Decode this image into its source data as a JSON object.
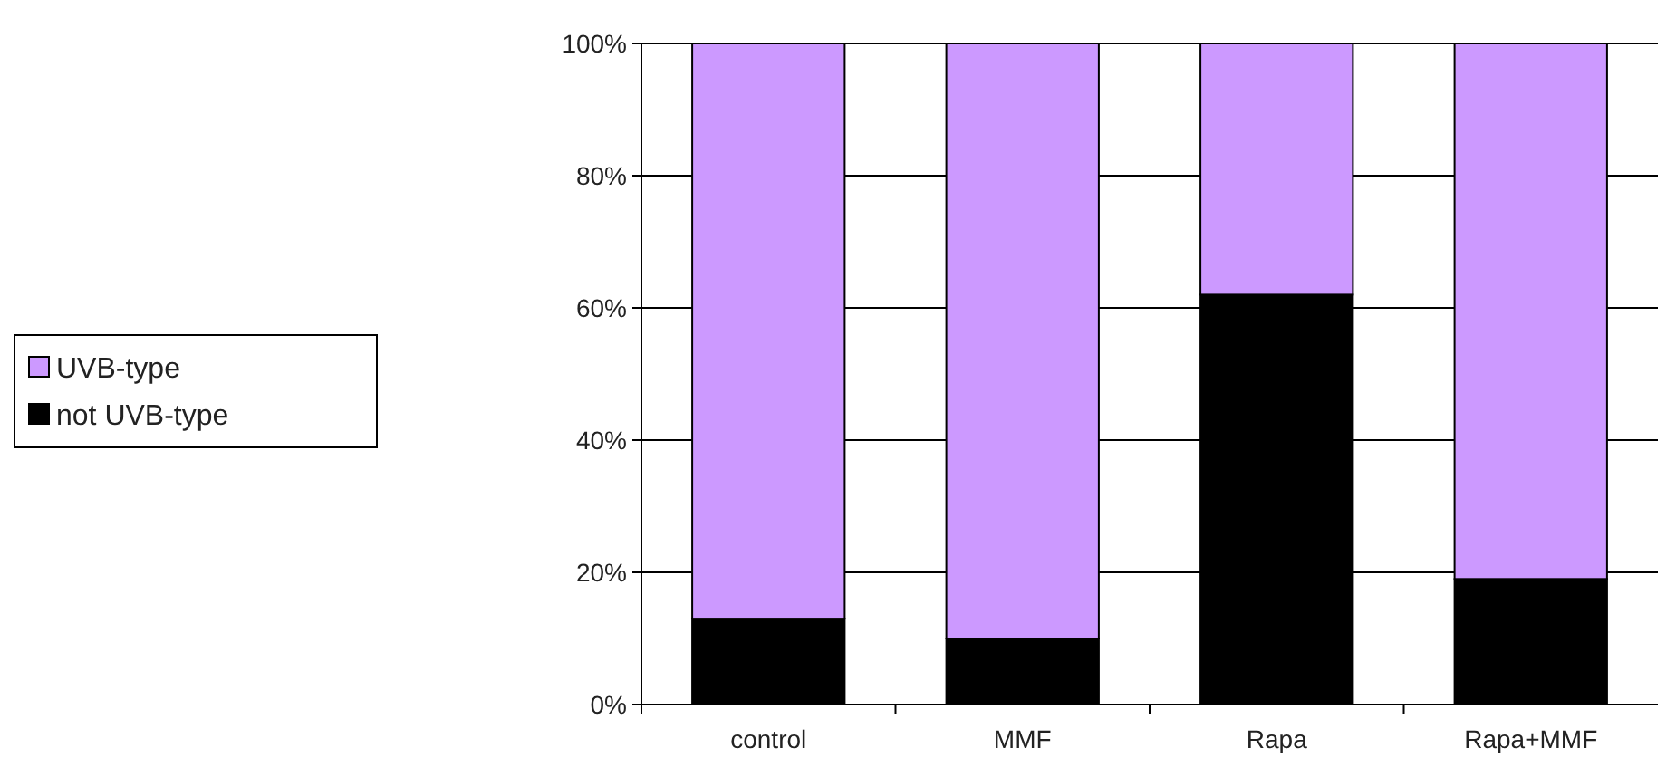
{
  "chart_data": {
    "type": "bar",
    "stacked": true,
    "categories": [
      "control",
      "MMF",
      "Rapa",
      "Rapa+MMF"
    ],
    "series": [
      {
        "name": "not UVB-type",
        "color": "#000000",
        "values": [
          13,
          10,
          62,
          19
        ]
      },
      {
        "name": "UVB-type",
        "color": "#cc99ff",
        "values": [
          87,
          90,
          38,
          81
        ]
      }
    ],
    "ylim": [
      0,
      100
    ],
    "yticks": [
      {
        "value": 0,
        "label": "0%"
      },
      {
        "value": 20,
        "label": "20%"
      },
      {
        "value": 40,
        "label": "40%"
      },
      {
        "value": 60,
        "label": "60%"
      },
      {
        "value": 80,
        "label": "80%"
      },
      {
        "value": 100,
        "label": "100%"
      }
    ],
    "grid": "y",
    "legend": "left"
  }
}
